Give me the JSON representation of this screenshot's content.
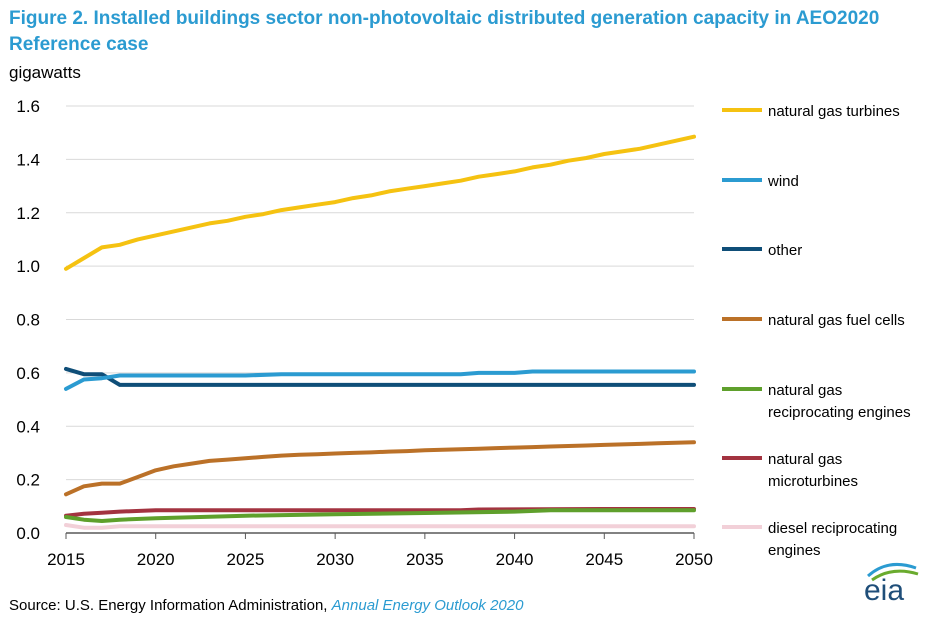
{
  "header": {
    "title": "Figure 2. Installed buildings sector non-photovoltaic distributed generation capacity in AEO2020 Reference case",
    "unit_label": "gigawatts"
  },
  "footer": {
    "source_prefix": "Source: U.S. Energy Information Administration, ",
    "source_title": "Annual Energy Outlook 2020"
  },
  "logo": {
    "text": "eia"
  },
  "colors": {
    "title": "#2b9bd1",
    "axis": "#595959",
    "grid": "#d9d9d9"
  },
  "chart_data": {
    "type": "line",
    "title": "Figure 2. Installed buildings sector non-photovoltaic distributed generation capacity in AEO2020 Reference case",
    "ylabel": "gigawatts",
    "xlabel": "",
    "xlim": [
      2015,
      2050
    ],
    "ylim": [
      0,
      1.6
    ],
    "x_ticks": [
      2015,
      2020,
      2025,
      2030,
      2035,
      2040,
      2045,
      2050
    ],
    "y_ticks": [
      0.0,
      0.2,
      0.4,
      0.6,
      0.8,
      1.0,
      1.2,
      1.4,
      1.6
    ],
    "y_tick_labels": [
      "0.0",
      "0.2",
      "0.4",
      "0.6",
      "0.8",
      "1.0",
      "1.2",
      "1.4",
      "1.6"
    ],
    "grid": "horizontal",
    "legend_position": "right",
    "series": [
      {
        "name": "natural gas turbines",
        "color": "#f5c211",
        "x": [
          2015,
          2016,
          2017,
          2018,
          2019,
          2020,
          2021,
          2022,
          2023,
          2024,
          2025,
          2026,
          2027,
          2028,
          2029,
          2030,
          2031,
          2032,
          2033,
          2034,
          2035,
          2036,
          2037,
          2038,
          2039,
          2040,
          2041,
          2042,
          2043,
          2044,
          2045,
          2046,
          2047,
          2048,
          2049,
          2050
        ],
        "values": [
          0.99,
          1.03,
          1.07,
          1.08,
          1.1,
          1.115,
          1.13,
          1.145,
          1.16,
          1.17,
          1.185,
          1.195,
          1.21,
          1.22,
          1.23,
          1.24,
          1.255,
          1.265,
          1.28,
          1.29,
          1.3,
          1.31,
          1.32,
          1.335,
          1.345,
          1.355,
          1.37,
          1.38,
          1.395,
          1.405,
          1.42,
          1.43,
          1.44,
          1.455,
          1.47,
          1.485
        ]
      },
      {
        "name": "wind",
        "color": "#2b9bd1",
        "x": [
          2015,
          2016,
          2017,
          2018,
          2020,
          2025,
          2027,
          2030,
          2037,
          2038,
          2040,
          2041,
          2045,
          2050
        ],
        "values": [
          0.54,
          0.575,
          0.58,
          0.59,
          0.59,
          0.59,
          0.595,
          0.595,
          0.595,
          0.6,
          0.6,
          0.605,
          0.605,
          0.605
        ]
      },
      {
        "name": "other",
        "color": "#0f4e78",
        "x": [
          2015,
          2016,
          2017,
          2018,
          2050
        ],
        "values": [
          0.615,
          0.595,
          0.595,
          0.555,
          0.555
        ]
      },
      {
        "name": "natural gas fuel cells",
        "color": "#bb7128",
        "x": [
          2015,
          2016,
          2017,
          2018,
          2019,
          2020,
          2021,
          2022,
          2023,
          2024,
          2025,
          2026,
          2027,
          2028,
          2029,
          2030,
          2031,
          2032,
          2033,
          2034,
          2035,
          2036,
          2037,
          2038,
          2039,
          2040,
          2041,
          2042,
          2043,
          2044,
          2045,
          2046,
          2047,
          2048,
          2049,
          2050
        ],
        "values": [
          0.145,
          0.175,
          0.185,
          0.185,
          0.21,
          0.235,
          0.25,
          0.26,
          0.27,
          0.275,
          0.28,
          0.285,
          0.29,
          0.293,
          0.295,
          0.298,
          0.3,
          0.302,
          0.305,
          0.307,
          0.31,
          0.312,
          0.314,
          0.316,
          0.318,
          0.32,
          0.322,
          0.324,
          0.326,
          0.328,
          0.33,
          0.332,
          0.334,
          0.336,
          0.338,
          0.34
        ]
      },
      {
        "name": "natural gas reciprocating engines",
        "color": "#5fa02c",
        "x": [
          2015,
          2016,
          2017,
          2018,
          2020,
          2025,
          2030,
          2035,
          2040,
          2042,
          2045,
          2050
        ],
        "values": [
          0.06,
          0.05,
          0.045,
          0.05,
          0.055,
          0.065,
          0.07,
          0.075,
          0.08,
          0.085,
          0.085,
          0.085
        ]
      },
      {
        "name": "natural gas microturbines",
        "color": "#a33340",
        "x": [
          2015,
          2016,
          2017,
          2018,
          2020,
          2025,
          2030,
          2037,
          2038,
          2045,
          2050
        ],
        "values": [
          0.065,
          0.072,
          0.076,
          0.08,
          0.085,
          0.085,
          0.085,
          0.085,
          0.088,
          0.09,
          0.09
        ]
      },
      {
        "name": "diesel reciprocating engines",
        "color": "#f2d0d8",
        "x": [
          2015,
          2016,
          2017,
          2018,
          2020,
          2050
        ],
        "values": [
          0.03,
          0.02,
          0.02,
          0.025,
          0.025,
          0.025
        ]
      }
    ],
    "legend": [
      {
        "lines": [
          "natural gas turbines"
        ]
      },
      {
        "lines": [
          "wind"
        ]
      },
      {
        "lines": [
          "other"
        ]
      },
      {
        "lines": [
          "natural gas fuel cells"
        ]
      },
      {
        "lines": [
          "natural gas",
          "reciprocating engines"
        ]
      },
      {
        "lines": [
          "natural gas",
          "microturbines"
        ]
      },
      {
        "lines": [
          "diesel reciprocating",
          "engines"
        ]
      }
    ]
  }
}
